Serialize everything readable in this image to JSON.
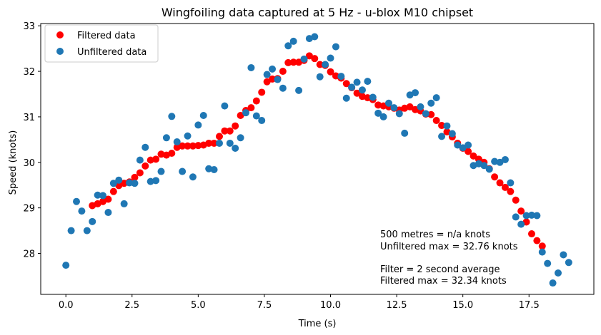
{
  "chart_data": {
    "type": "scatter",
    "title": "Wingfoiling data captured at 5 Hz - u-blox M10 chipset",
    "xlabel": "Time (s)",
    "ylabel": "Speed (knots)",
    "xlim": [
      -0.95,
      19.95
    ],
    "ylim": [
      27.1,
      33.05
    ],
    "xticks": [
      0.0,
      2.5,
      5.0,
      7.5,
      10.0,
      12.5,
      15.0,
      17.5
    ],
    "xtick_labels": [
      "0.0",
      "2.5",
      "5.0",
      "7.5",
      "10.0",
      "12.5",
      "15.0",
      "17.5"
    ],
    "yticks": [
      28,
      29,
      30,
      31,
      32,
      33
    ],
    "ytick_labels": [
      "28",
      "29",
      "30",
      "31",
      "32",
      "33"
    ],
    "grid": false,
    "legend": {
      "position": "top-left"
    },
    "annotations": [
      "500 metres = n/a knots",
      "Unfiltered max = 32.76 knots",
      "Filter = 2 second average",
      "Filtered max = 32.34 knots"
    ],
    "series": [
      {
        "name": "Filtered data",
        "color": "#ff0000",
        "points": [
          [
            1.0,
            29.05
          ],
          [
            1.2,
            29.09
          ],
          [
            1.4,
            29.14
          ],
          [
            1.6,
            29.19
          ],
          [
            1.8,
            29.36
          ],
          [
            2.0,
            29.49
          ],
          [
            2.2,
            29.54
          ],
          [
            2.4,
            29.57
          ],
          [
            2.6,
            29.67
          ],
          [
            2.8,
            29.77
          ],
          [
            3.0,
            29.92
          ],
          [
            3.2,
            30.05
          ],
          [
            3.4,
            30.07
          ],
          [
            3.6,
            30.18
          ],
          [
            3.8,
            30.16
          ],
          [
            4.0,
            30.2
          ],
          [
            4.2,
            30.33
          ],
          [
            4.4,
            30.36
          ],
          [
            4.6,
            30.36
          ],
          [
            4.8,
            30.36
          ],
          [
            5.0,
            30.37
          ],
          [
            5.2,
            30.38
          ],
          [
            5.4,
            30.42
          ],
          [
            5.6,
            30.42
          ],
          [
            5.8,
            30.57
          ],
          [
            6.0,
            30.69
          ],
          [
            6.2,
            30.69
          ],
          [
            6.4,
            30.8
          ],
          [
            6.6,
            31.03
          ],
          [
            6.8,
            31.14
          ],
          [
            7.0,
            31.2
          ],
          [
            7.2,
            31.35
          ],
          [
            7.4,
            31.54
          ],
          [
            7.6,
            31.77
          ],
          [
            7.8,
            31.83
          ],
          [
            8.0,
            31.84
          ],
          [
            8.2,
            32.0
          ],
          [
            8.4,
            32.19
          ],
          [
            8.6,
            32.2
          ],
          [
            8.8,
            32.2
          ],
          [
            9.0,
            32.24
          ],
          [
            9.2,
            32.34
          ],
          [
            9.4,
            32.28
          ],
          [
            9.6,
            32.15
          ],
          [
            9.8,
            32.13
          ],
          [
            10.0,
            31.99
          ],
          [
            10.2,
            31.9
          ],
          [
            10.4,
            31.85
          ],
          [
            10.6,
            31.73
          ],
          [
            10.8,
            31.64
          ],
          [
            11.0,
            31.52
          ],
          [
            11.2,
            31.45
          ],
          [
            11.4,
            31.42
          ],
          [
            11.6,
            31.38
          ],
          [
            11.8,
            31.26
          ],
          [
            12.0,
            31.24
          ],
          [
            12.2,
            31.22
          ],
          [
            12.4,
            31.19
          ],
          [
            12.6,
            31.15
          ],
          [
            12.8,
            31.19
          ],
          [
            13.0,
            31.22
          ],
          [
            13.2,
            31.16
          ],
          [
            13.4,
            31.13
          ],
          [
            13.6,
            31.06
          ],
          [
            13.8,
            31.05
          ],
          [
            14.0,
            30.92
          ],
          [
            14.2,
            30.81
          ],
          [
            14.4,
            30.67
          ],
          [
            14.6,
            30.56
          ],
          [
            14.8,
            30.42
          ],
          [
            15.0,
            30.31
          ],
          [
            15.2,
            30.24
          ],
          [
            15.4,
            30.14
          ],
          [
            15.6,
            30.07
          ],
          [
            15.8,
            30.0
          ],
          [
            16.0,
            29.86
          ],
          [
            16.2,
            29.68
          ],
          [
            16.4,
            29.55
          ],
          [
            16.6,
            29.45
          ],
          [
            16.8,
            29.36
          ],
          [
            17.0,
            29.17
          ],
          [
            17.2,
            28.93
          ],
          [
            17.4,
            28.69
          ],
          [
            17.6,
            28.43
          ],
          [
            17.8,
            28.28
          ],
          [
            18.0,
            28.16
          ]
        ]
      },
      {
        "name": "Unfiltered data",
        "color": "#1f77b4",
        "points": [
          [
            0.0,
            27.74
          ],
          [
            0.2,
            28.5
          ],
          [
            0.4,
            29.14
          ],
          [
            0.6,
            28.93
          ],
          [
            0.8,
            28.5
          ],
          [
            1.0,
            28.7
          ],
          [
            1.2,
            29.28
          ],
          [
            1.4,
            29.27
          ],
          [
            1.6,
            28.9
          ],
          [
            1.8,
            29.54
          ],
          [
            2.0,
            29.61
          ],
          [
            2.2,
            29.09
          ],
          [
            2.4,
            29.55
          ],
          [
            2.6,
            29.54
          ],
          [
            2.8,
            30.05
          ],
          [
            3.0,
            30.33
          ],
          [
            3.2,
            29.58
          ],
          [
            3.4,
            29.6
          ],
          [
            3.6,
            29.8
          ],
          [
            3.8,
            30.54
          ],
          [
            4.0,
            31.01
          ],
          [
            4.2,
            30.45
          ],
          [
            4.4,
            29.8
          ],
          [
            4.6,
            30.58
          ],
          [
            4.8,
            29.68
          ],
          [
            5.0,
            30.82
          ],
          [
            5.2,
            31.03
          ],
          [
            5.4,
            29.86
          ],
          [
            5.6,
            29.84
          ],
          [
            5.8,
            30.42
          ],
          [
            6.0,
            31.24
          ],
          [
            6.2,
            30.42
          ],
          [
            6.4,
            30.31
          ],
          [
            6.6,
            30.54
          ],
          [
            6.8,
            31.09
          ],
          [
            7.0,
            32.08
          ],
          [
            7.2,
            31.02
          ],
          [
            7.4,
            30.92
          ],
          [
            7.6,
            31.93
          ],
          [
            7.8,
            32.05
          ],
          [
            8.0,
            31.82
          ],
          [
            8.2,
            31.63
          ],
          [
            8.4,
            32.56
          ],
          [
            8.6,
            32.66
          ],
          [
            8.8,
            31.58
          ],
          [
            9.0,
            32.27
          ],
          [
            9.2,
            32.72
          ],
          [
            9.4,
            32.76
          ],
          [
            9.6,
            31.88
          ],
          [
            9.8,
            32.15
          ],
          [
            10.0,
            32.29
          ],
          [
            10.2,
            32.54
          ],
          [
            10.4,
            31.89
          ],
          [
            10.6,
            31.41
          ],
          [
            10.8,
            31.65
          ],
          [
            11.0,
            31.76
          ],
          [
            11.2,
            31.59
          ],
          [
            11.4,
            31.78
          ],
          [
            11.6,
            31.43
          ],
          [
            11.8,
            31.08
          ],
          [
            12.0,
            31.0
          ],
          [
            12.2,
            31.3
          ],
          [
            12.4,
            31.2
          ],
          [
            12.6,
            31.07
          ],
          [
            12.8,
            30.64
          ],
          [
            13.0,
            31.48
          ],
          [
            13.2,
            31.53
          ],
          [
            13.4,
            31.22
          ],
          [
            13.6,
            31.07
          ],
          [
            13.8,
            31.3
          ],
          [
            14.0,
            31.42
          ],
          [
            14.2,
            30.57
          ],
          [
            14.4,
            30.8
          ],
          [
            14.6,
            30.63
          ],
          [
            14.8,
            30.38
          ],
          [
            15.0,
            30.32
          ],
          [
            15.2,
            30.38
          ],
          [
            15.4,
            29.93
          ],
          [
            15.6,
            29.97
          ],
          [
            15.8,
            29.93
          ],
          [
            16.0,
            29.85
          ],
          [
            16.2,
            30.02
          ],
          [
            16.4,
            30.0
          ],
          [
            16.6,
            30.06
          ],
          [
            16.8,
            29.55
          ],
          [
            17.0,
            28.8
          ],
          [
            17.2,
            28.64
          ],
          [
            17.4,
            28.83
          ],
          [
            17.6,
            28.84
          ],
          [
            17.8,
            28.83
          ],
          [
            18.0,
            28.03
          ],
          [
            18.2,
            27.78
          ],
          [
            18.4,
            27.35
          ],
          [
            18.6,
            27.57
          ],
          [
            18.8,
            27.97
          ],
          [
            19.0,
            27.8
          ]
        ]
      }
    ]
  }
}
